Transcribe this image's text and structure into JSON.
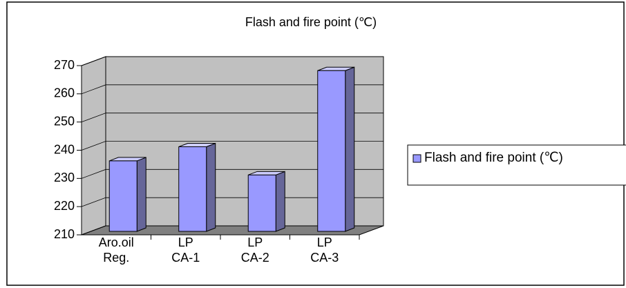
{
  "chart_data": {
    "type": "bar3d",
    "title": "Flash and fire point (℃)",
    "categories": [
      [
        "Aro.oil",
        "Reg."
      ],
      [
        "LP",
        "CA-1"
      ],
      [
        "LP",
        "CA-2"
      ],
      [
        "LP",
        "CA-3"
      ]
    ],
    "series": [
      {
        "name": "Flash and fire point (℃)",
        "color": "#9999ff",
        "values": [
          235,
          240,
          230,
          267
        ]
      }
    ],
    "ylim": [
      210,
      270
    ],
    "yticks": [
      210,
      220,
      230,
      240,
      250,
      260,
      270
    ],
    "grid": true,
    "legend": "right"
  }
}
